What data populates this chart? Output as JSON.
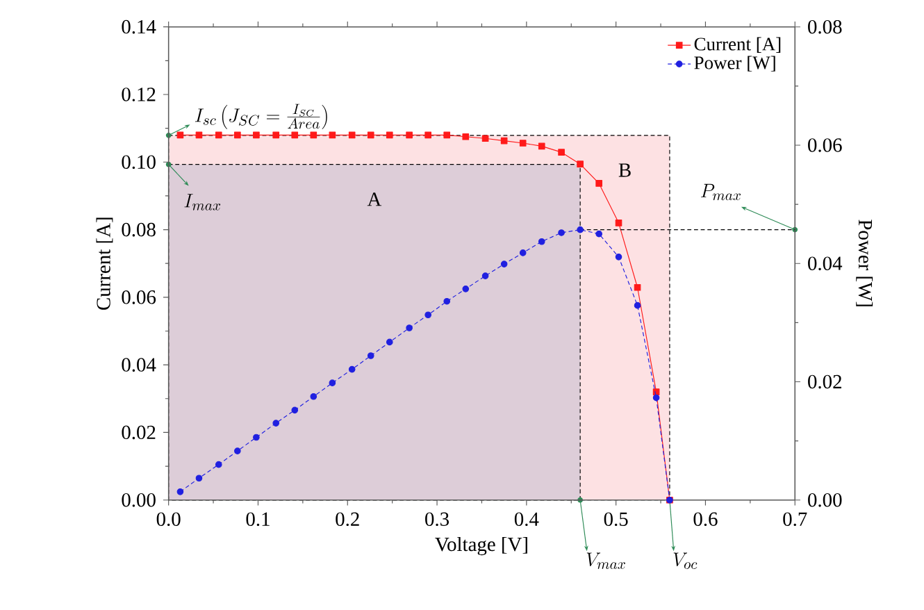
{
  "chart_data": {
    "type": "line",
    "xlabel": "Voltage [V]",
    "ylabel": "Current [A]",
    "y2label": "Power [W]",
    "xlim": [
      0,
      0.7
    ],
    "ylim": [
      0,
      0.14
    ],
    "y2lim": [
      0,
      0.08
    ],
    "xticks": [
      {
        "value": 0,
        "label": "0.0"
      },
      0.1,
      0.2,
      0.3,
      0.4,
      0.5,
      0.6,
      0.7
    ],
    "yticks": [
      {
        "value": 0,
        "label": "0.00"
      },
      0.02,
      0.04,
      0.06,
      0.08,
      {
        "value": 0.1,
        "label": "0.10"
      },
      0.12,
      0.14
    ],
    "y2ticks": [
      {
        "value": 0,
        "label": "0.00"
      },
      0.02,
      0.04,
      0.06,
      0.08
    ],
    "legend": "top right",
    "series": [
      {
        "name": "B",
        "type": "area",
        "color": "#fde1e3",
        "line_style": "dashed",
        "x": [
          0,
          0.56
        ],
        "values": [
          0.1079,
          0.1079
        ]
      },
      {
        "name": "A",
        "type": "area",
        "color": "#ddcdd8",
        "line_style": "dashed",
        "x": [
          0,
          0.46
        ],
        "values": [
          0.0993,
          0.0993
        ]
      },
      {
        "name": "Current [A]",
        "color": "#ff1a1a",
        "marker": "square",
        "line_style": "solid",
        "x": [
          0.013,
          0.034,
          0.056,
          0.077,
          0.098,
          0.12,
          0.141,
          0.162,
          0.183,
          0.205,
          0.226,
          0.247,
          0.269,
          0.29,
          0.311,
          0.332,
          0.354,
          0.375,
          0.396,
          0.417,
          0.439,
          0.46,
          0.481,
          0.503,
          0.524,
          0.545,
          0.56
        ],
        "values": [
          0.108,
          0.108,
          0.108,
          0.108,
          0.108,
          0.108,
          0.108,
          0.108,
          0.108,
          0.108,
          0.108,
          0.108,
          0.108,
          0.108,
          0.108,
          0.1075,
          0.107,
          0.1063,
          0.1056,
          0.1047,
          0.1029,
          0.0994,
          0.0937,
          0.082,
          0.0629,
          0.032,
          0
        ]
      },
      {
        "name": "Power  [W]",
        "axis": "y2",
        "color": "#2020e0",
        "marker": "circle",
        "line_style": "dashed",
        "x": [
          0.013,
          0.034,
          0.056,
          0.077,
          0.098,
          0.12,
          0.141,
          0.162,
          0.183,
          0.205,
          0.226,
          0.247,
          0.269,
          0.29,
          0.311,
          0.332,
          0.354,
          0.375,
          0.396,
          0.417,
          0.439,
          0.46,
          0.481,
          0.503,
          0.524,
          0.545,
          0.56
        ],
        "values": [
          0.0014,
          0.0037,
          0.006,
          0.0083,
          0.0106,
          0.013,
          0.0152,
          0.0175,
          0.0198,
          0.0221,
          0.0244,
          0.0267,
          0.0291,
          0.0313,
          0.0336,
          0.0357,
          0.0379,
          0.0399,
          0.0418,
          0.0437,
          0.0452,
          0.0457,
          0.045,
          0.0411,
          0.0329,
          0.0173,
          0
        ]
      },
      {
        "axis": "y2",
        "color": "#000000",
        "line_style": "dashed",
        "x": [
          0.46,
          0.7
        ],
        "values": [
          0.0457,
          0.0457
        ]
      }
    ],
    "annotations": [
      {
        "text": "I_{sc}\\left(J_{SC}=\\frac{I_{SC}}{Area}\\right)",
        "x": 0,
        "y": 0.1079
      },
      {
        "text": "I_{max}",
        "x": 0,
        "y": 0.0993
      },
      {
        "text": "P_{max}",
        "x": 0.7,
        "y": 0.08
      },
      {
        "text": "V_{max}",
        "x": 0.46,
        "y": 0
      },
      {
        "text": "V_{oc}",
        "x": 0.56,
        "y": 0
      }
    ]
  }
}
